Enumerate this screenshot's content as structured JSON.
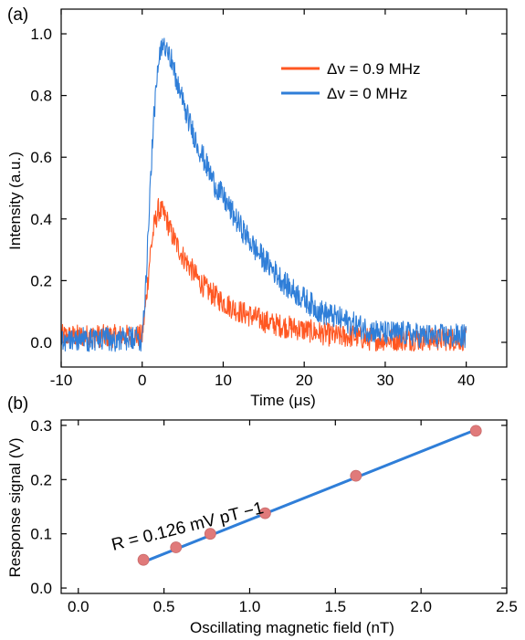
{
  "chart_data": [
    {
      "panel_label": "(a)",
      "type": "line",
      "xlabel": "Time (μs)",
      "ylabel": "Intensity (a.u.)",
      "xlim": [
        -10,
        45
      ],
      "ylim": [
        -0.08,
        1.08
      ],
      "xticks": [
        -10,
        0,
        10,
        20,
        30,
        40
      ],
      "yticks": [
        0.0,
        0.2,
        0.4,
        0.6,
        0.8,
        1.0
      ],
      "x_tick_labels": [
        "-10",
        "0",
        "10",
        "20",
        "30",
        "40"
      ],
      "y_tick_labels": [
        "0.0",
        "0.2",
        "0.4",
        "0.6",
        "0.8",
        "1.0"
      ],
      "legend_position": "top-right",
      "series": [
        {
          "name": "Δv = 0.9 MHz",
          "color": "#ff5722",
          "noise": 0.038,
          "x": [
            -10,
            -5,
            0,
            0.5,
            1,
            1.5,
            2,
            2.5,
            3,
            3.5,
            4,
            5,
            6,
            7,
            8,
            9,
            10,
            12,
            14,
            16,
            18,
            20,
            22,
            24,
            26,
            28,
            30,
            35,
            40
          ],
          "y": [
            0.02,
            0.02,
            0.02,
            0.14,
            0.29,
            0.38,
            0.43,
            0.42,
            0.4,
            0.36,
            0.33,
            0.28,
            0.24,
            0.2,
            0.17,
            0.15,
            0.13,
            0.1,
            0.08,
            0.06,
            0.05,
            0.04,
            0.03,
            0.02,
            0.02,
            0.01,
            0.01,
            0.01,
            0.01
          ]
        },
        {
          "name": "Δv = 0 MHz",
          "color": "#2f7ed8",
          "noise": 0.04,
          "x": [
            -10,
            -5,
            0,
            0.5,
            1,
            1.5,
            2,
            2.5,
            3,
            3.5,
            4,
            5,
            6,
            7,
            8,
            9,
            10,
            12,
            14,
            16,
            18,
            20,
            22,
            24,
            26,
            28,
            30,
            32,
            35,
            38,
            40
          ],
          "y": [
            0.01,
            0.01,
            0.01,
            0.22,
            0.52,
            0.75,
            0.9,
            0.96,
            0.97,
            0.93,
            0.87,
            0.78,
            0.7,
            0.63,
            0.57,
            0.51,
            0.47,
            0.38,
            0.3,
            0.24,
            0.18,
            0.14,
            0.1,
            0.08,
            0.06,
            0.04,
            0.03,
            0.03,
            0.02,
            0.02,
            0.02
          ]
        }
      ]
    },
    {
      "panel_label": "(b)",
      "type": "scatter",
      "xlabel": "Oscillating magnetic field (nT)",
      "ylabel": "Response signal (V)",
      "xlim": [
        -0.1,
        2.5
      ],
      "ylim": [
        -0.01,
        0.31
      ],
      "xticks": [
        0.0,
        0.5,
        1.0,
        1.5,
        2.0,
        2.5
      ],
      "yticks": [
        0.0,
        0.1,
        0.2,
        0.3
      ],
      "x_tick_labels": [
        "0.0",
        "0.5",
        "1.0",
        "1.5",
        "2.0",
        "2.5"
      ],
      "y_tick_labels": [
        "0.0",
        "0.1",
        "0.2",
        "0.3"
      ],
      "annotation": "R = 0.126 mV pT −1",
      "points": {
        "color": "#e07a7a",
        "x": [
          0.38,
          0.57,
          0.77,
          1.09,
          1.62,
          2.32
        ],
        "y": [
          0.052,
          0.075,
          0.1,
          0.138,
          0.207,
          0.29
        ]
      },
      "fit": {
        "color": "#2f7ed8",
        "x": [
          0.38,
          2.32
        ],
        "y": [
          0.048,
          0.292
        ]
      }
    }
  ]
}
